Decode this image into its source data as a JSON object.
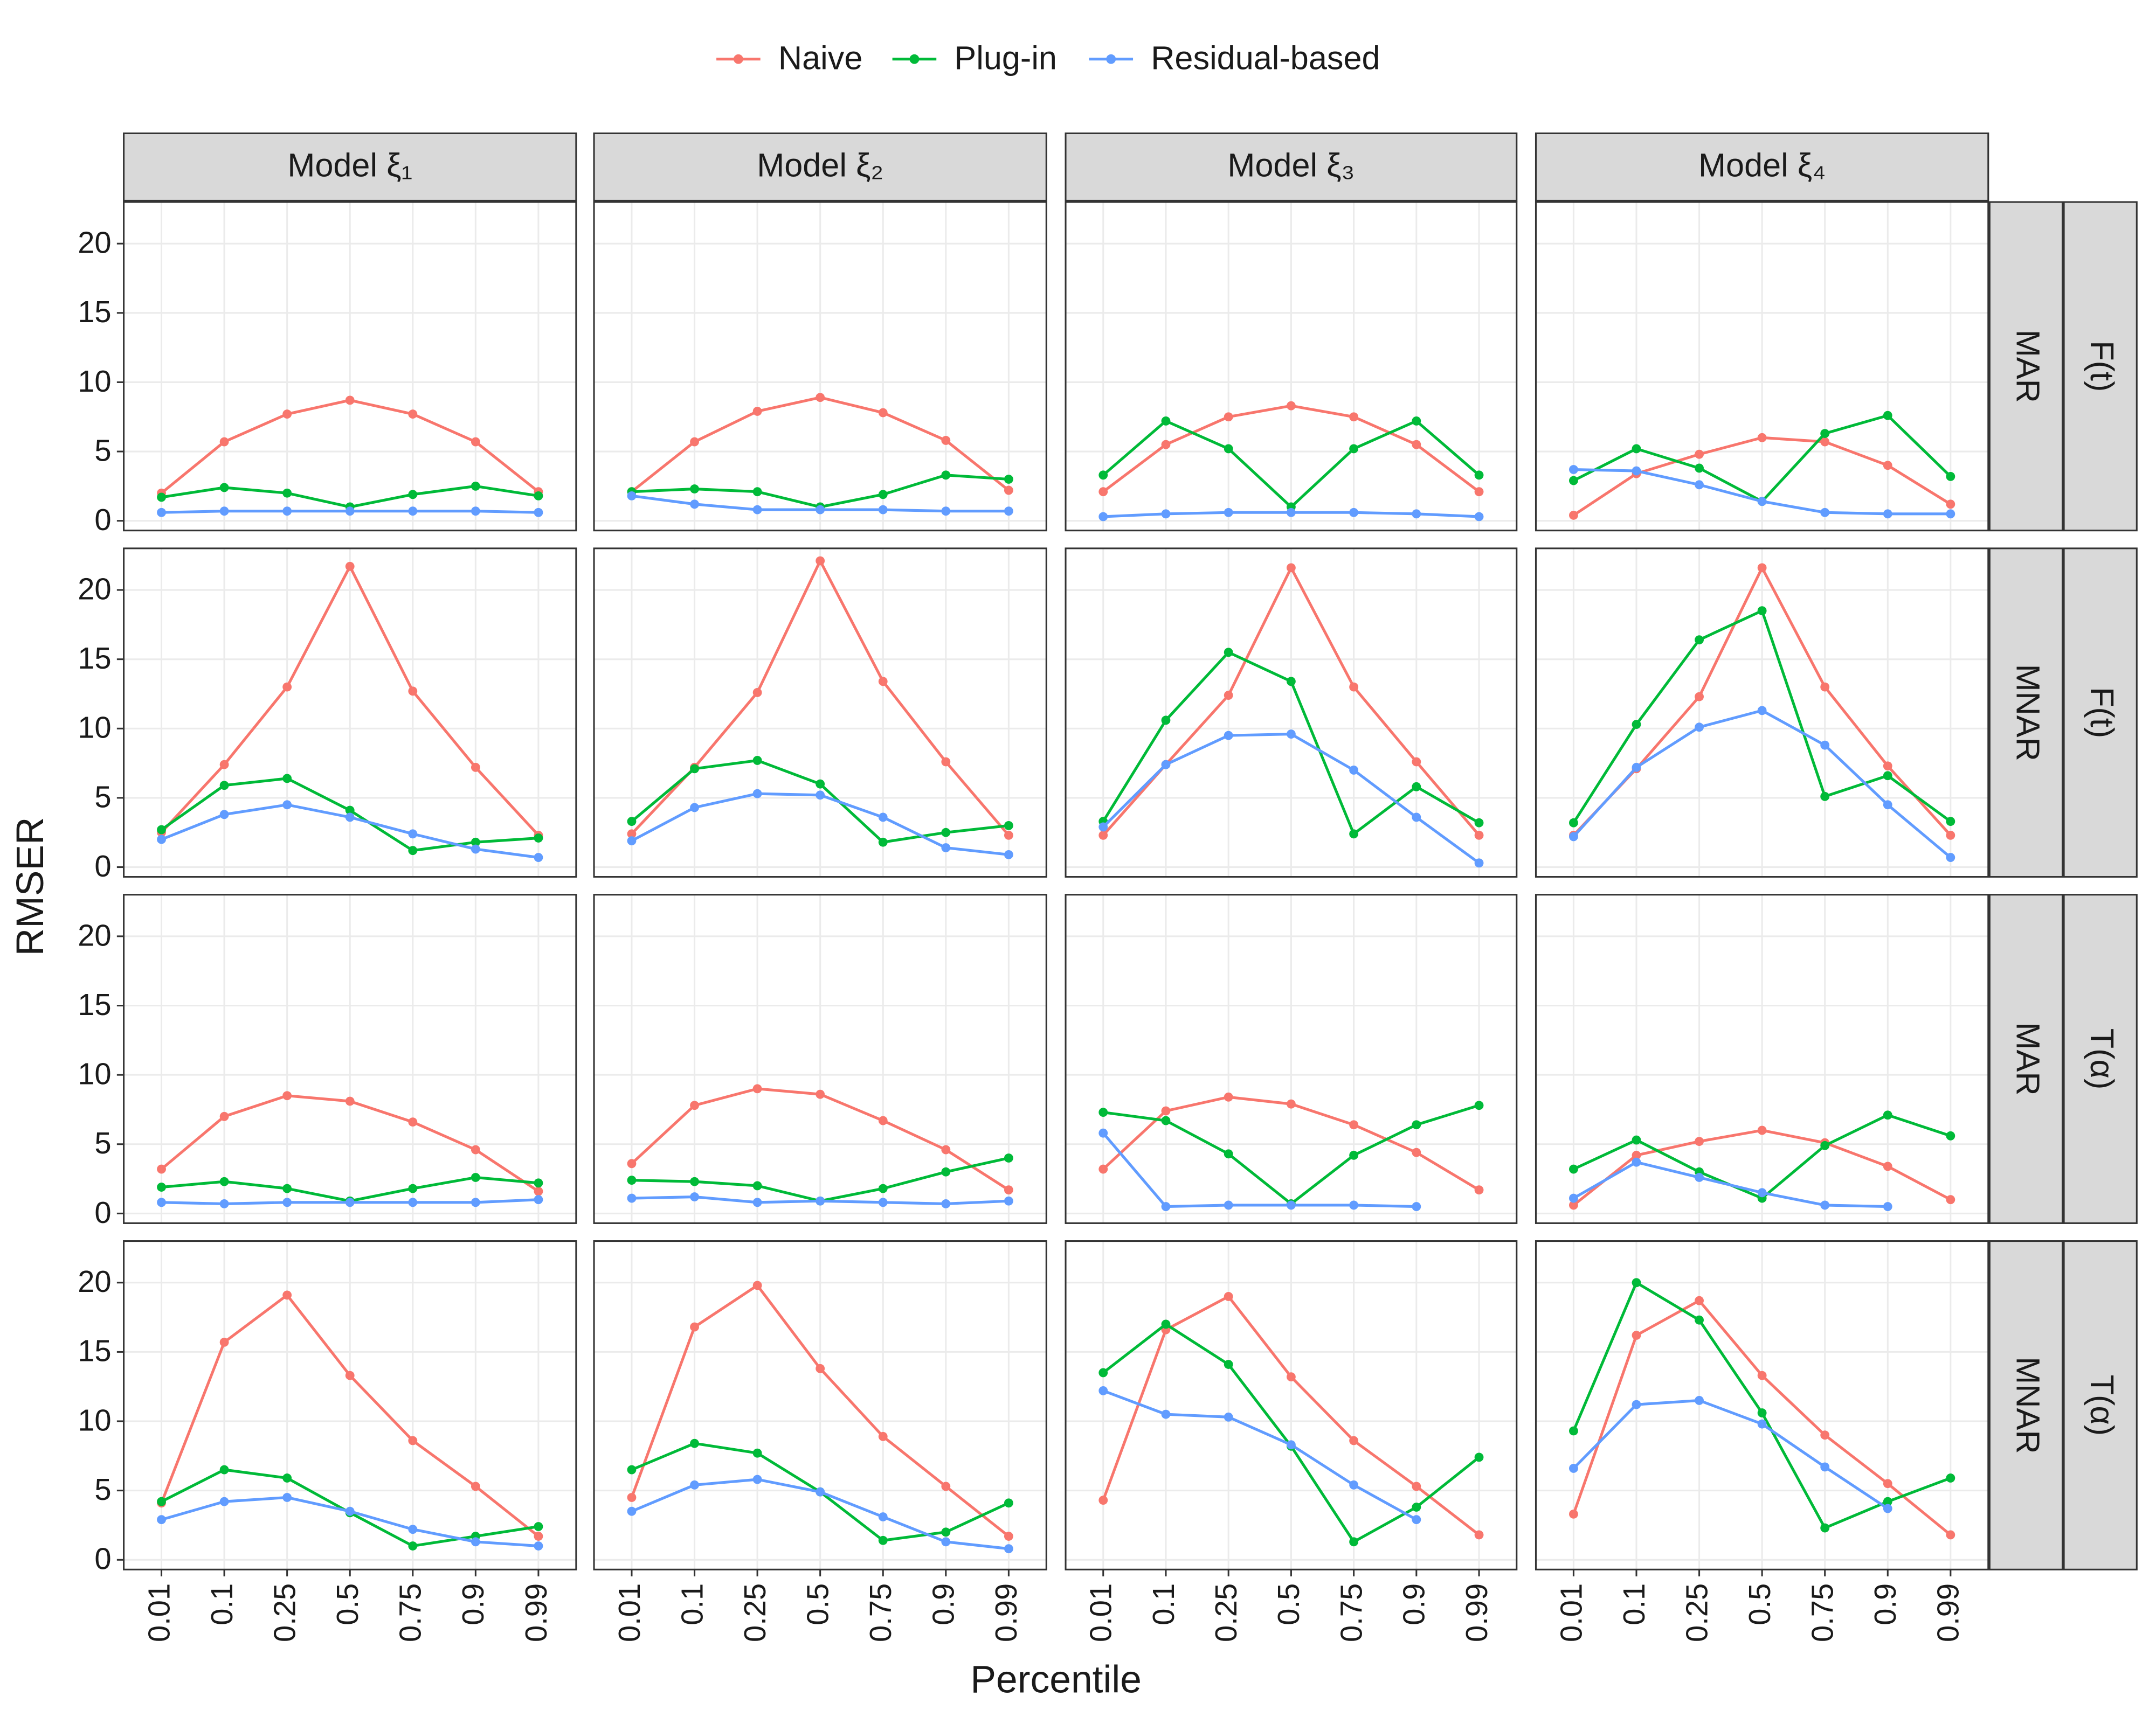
{
  "chart_data": {
    "type": "line",
    "xlabel": "Percentile",
    "ylabel": "RMSER",
    "categories": [
      "0.01",
      "0.1",
      "0.25",
      "0.5",
      "0.75",
      "0.9",
      "0.99"
    ],
    "ylim": [
      -0.7,
      23
    ],
    "yticks": [
      0,
      5,
      10,
      15,
      20
    ],
    "grid": true,
    "legend": "top",
    "series": [
      {
        "name": "Naive",
        "color": "#f8766d"
      },
      {
        "name": "Plug-in",
        "color": "#00ba38"
      },
      {
        "name": "Residual-based",
        "color": "#619cff"
      }
    ],
    "columns": [
      "Model ξ₁",
      "Model ξ₂",
      "Model ξ₃",
      "Model ξ₄"
    ],
    "rows": [
      {
        "missing": "MAR",
        "target": "F(t)"
      },
      {
        "missing": "MNAR",
        "target": "F(t)"
      },
      {
        "missing": "MAR",
        "target": "T(α)"
      },
      {
        "missing": "MNAR",
        "target": "T(α)"
      }
    ],
    "panels": [
      {
        "series": [
          {
            "values": [
              2.0,
              5.7,
              7.7,
              8.7,
              7.7,
              5.7,
              2.1
            ]
          },
          {
            "values": [
              1.7,
              2.4,
              2.0,
              1.0,
              1.9,
              2.5,
              1.8
            ]
          },
          {
            "values": [
              0.6,
              0.7,
              0.7,
              0.7,
              0.7,
              0.7,
              0.6
            ]
          }
        ]
      },
      {
        "series": [
          {
            "values": [
              2.1,
              5.7,
              7.9,
              8.9,
              7.8,
              5.8,
              2.2
            ]
          },
          {
            "values": [
              2.1,
              2.3,
              2.1,
              1.0,
              1.9,
              3.3,
              3.0
            ]
          },
          {
            "values": [
              1.8,
              1.2,
              0.8,
              0.8,
              0.8,
              0.7,
              0.7
            ]
          }
        ]
      },
      {
        "series": [
          {
            "values": [
              2.1,
              5.5,
              7.5,
              8.3,
              7.5,
              5.5,
              2.1
            ]
          },
          {
            "values": [
              3.3,
              7.2,
              5.2,
              1.0,
              5.2,
              7.2,
              3.3
            ]
          },
          {
            "values": [
              0.3,
              0.5,
              0.6,
              0.6,
              0.6,
              0.5,
              0.3
            ]
          }
        ]
      },
      {
        "series": [
          {
            "values": [
              0.4,
              3.4,
              4.8,
              6.0,
              5.7,
              4.0,
              1.2
            ]
          },
          {
            "values": [
              2.9,
              5.2,
              3.8,
              1.4,
              6.3,
              7.6,
              3.2
            ]
          },
          {
            "values": [
              3.7,
              3.6,
              2.6,
              1.4,
              0.6,
              0.5,
              0.5
            ]
          }
        ]
      },
      {
        "series": [
          {
            "values": [
              2.5,
              7.4,
              13.0,
              21.7,
              12.7,
              7.2,
              2.3
            ]
          },
          {
            "values": [
              2.7,
              5.9,
              6.4,
              4.1,
              1.2,
              1.8,
              2.1
            ]
          },
          {
            "values": [
              2.0,
              3.8,
              4.5,
              3.6,
              2.4,
              1.3,
              0.7
            ]
          }
        ]
      },
      {
        "series": [
          {
            "values": [
              2.4,
              7.2,
              12.6,
              22.1,
              13.4,
              7.6,
              2.3
            ]
          },
          {
            "values": [
              3.3,
              7.1,
              7.7,
              6.0,
              1.8,
              2.5,
              3.0
            ]
          },
          {
            "values": [
              1.9,
              4.3,
              5.3,
              5.2,
              3.6,
              1.4,
              0.9
            ]
          }
        ]
      },
      {
        "series": [
          {
            "values": [
              2.3,
              7.4,
              12.4,
              21.6,
              13.0,
              7.6,
              2.3
            ]
          },
          {
            "values": [
              3.3,
              10.6,
              15.5,
              13.4,
              2.4,
              5.8,
              3.2
            ]
          },
          {
            "values": [
              2.9,
              7.4,
              9.5,
              9.6,
              7.0,
              3.6,
              0.3
            ]
          }
        ]
      },
      {
        "series": [
          {
            "values": [
              2.3,
              7.1,
              12.3,
              21.6,
              13.0,
              7.3,
              2.3
            ]
          },
          {
            "values": [
              3.2,
              10.3,
              16.4,
              18.5,
              5.1,
              6.6,
              3.3
            ]
          },
          {
            "values": [
              2.2,
              7.2,
              10.1,
              11.3,
              8.8,
              4.5,
              0.7
            ]
          }
        ]
      },
      {
        "series": [
          {
            "values": [
              3.2,
              7.0,
              8.5,
              8.1,
              6.6,
              4.6,
              1.6
            ]
          },
          {
            "values": [
              1.9,
              2.3,
              1.8,
              0.9,
              1.8,
              2.6,
              2.2
            ]
          },
          {
            "values": [
              0.8,
              0.7,
              0.8,
              0.8,
              0.8,
              0.8,
              1.0
            ]
          }
        ]
      },
      {
        "series": [
          {
            "values": [
              3.6,
              7.8,
              9.0,
              8.6,
              6.7,
              4.6,
              1.7
            ]
          },
          {
            "values": [
              2.4,
              2.3,
              2.0,
              0.9,
              1.8,
              3.0,
              4.0
            ]
          },
          {
            "values": [
              1.1,
              1.2,
              0.8,
              0.9,
              0.8,
              0.7,
              0.9
            ]
          }
        ]
      },
      {
        "series": [
          {
            "values": [
              3.2,
              7.4,
              8.4,
              7.9,
              6.4,
              4.4,
              1.7
            ]
          },
          {
            "values": [
              7.3,
              6.7,
              4.3,
              0.7,
              4.2,
              6.4,
              7.8
            ]
          },
          {
            "values": [
              5.8,
              0.5,
              0.6,
              0.6,
              0.6,
              0.5,
              null
            ]
          }
        ]
      },
      {
        "series": [
          {
            "values": [
              0.6,
              4.2,
              5.2,
              6.0,
              5.1,
              3.4,
              1.0
            ]
          },
          {
            "values": [
              3.2,
              5.3,
              3.0,
              1.1,
              4.9,
              7.1,
              5.6
            ]
          },
          {
            "values": [
              1.1,
              3.7,
              2.6,
              1.5,
              0.6,
              0.5,
              null
            ]
          }
        ]
      },
      {
        "series": [
          {
            "values": [
              4.1,
              15.7,
              19.1,
              13.3,
              8.6,
              5.3,
              1.7
            ]
          },
          {
            "values": [
              4.2,
              6.5,
              5.9,
              3.4,
              1.0,
              1.7,
              2.4
            ]
          },
          {
            "values": [
              2.9,
              4.2,
              4.5,
              3.5,
              2.2,
              1.3,
              1.0
            ]
          }
        ]
      },
      {
        "series": [
          {
            "values": [
              4.5,
              16.8,
              19.8,
              13.8,
              8.9,
              5.3,
              1.7
            ]
          },
          {
            "values": [
              6.5,
              8.4,
              7.7,
              4.9,
              1.4,
              2.0,
              4.1
            ]
          },
          {
            "values": [
              3.5,
              5.4,
              5.8,
              4.9,
              3.1,
              1.3,
              0.8
            ]
          }
        ]
      },
      {
        "series": [
          {
            "values": [
              4.3,
              16.6,
              19.0,
              13.2,
              8.6,
              5.3,
              1.8
            ]
          },
          {
            "values": [
              13.5,
              17.0,
              14.1,
              8.2,
              1.3,
              3.8,
              7.4
            ]
          },
          {
            "values": [
              12.2,
              10.5,
              10.3,
              8.3,
              5.4,
              2.9,
              null
            ]
          }
        ]
      },
      {
        "series": [
          {
            "values": [
              3.3,
              16.2,
              18.7,
              13.3,
              9.0,
              5.5,
              1.8
            ]
          },
          {
            "values": [
              9.3,
              20.0,
              17.3,
              10.6,
              2.3,
              4.2,
              5.9
            ]
          },
          {
            "values": [
              6.6,
              11.2,
              11.5,
              9.8,
              6.7,
              3.7,
              null
            ]
          }
        ]
      }
    ]
  }
}
